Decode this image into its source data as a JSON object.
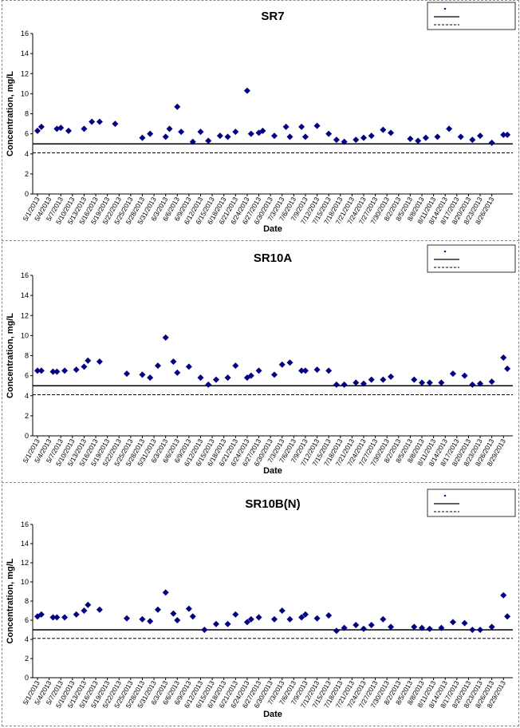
{
  "chart_data": [
    {
      "type": "scatter",
      "title": "SR7",
      "xlabel": "Date",
      "ylabel": "Concentration, mg/L",
      "ylim": [
        0,
        16
      ],
      "yticks": [
        "0",
        "2",
        "4",
        "6",
        "8",
        "10",
        "12",
        "14",
        "16"
      ],
      "grid": false,
      "legend_position": "top-right",
      "x_tick_labels": [
        "5/1/2013",
        "5/4/2013",
        "5/7/2013",
        "5/10/2013",
        "5/13/2013",
        "5/16/2013",
        "5/19/2013",
        "5/22/2013",
        "5/25/2013",
        "5/28/2013",
        "5/31/2013",
        "6/3/2013",
        "6/6/2013",
        "6/9/2013",
        "6/12/2013",
        "6/15/2013",
        "6/18/2013",
        "6/21/2013",
        "6/24/2013",
        "6/27/2013",
        "6/30/2013",
        "7/3/2013",
        "7/6/2013",
        "7/9/2013",
        "7/12/2013",
        "7/15/2013",
        "7/18/2013",
        "7/21/2013",
        "7/24/2013",
        "7/27/2013",
        "7/30/2013",
        "8/2/2013",
        "8/5/2013",
        "8/8/2013",
        "8/11/2013",
        "8/14/2013",
        "8/17/2013",
        "8/20/2013",
        "8/23/2013",
        "8/26/2013"
      ],
      "series": [
        {
          "marker": "diamond",
          "color": "#00008B",
          "x": [
            "5/1/2013",
            "5/2/2013",
            "5/6/2013",
            "5/7/2013",
            "5/9/2013",
            "5/13/2013",
            "5/15/2013",
            "5/17/2013",
            "5/21/2013",
            "5/28/2013",
            "5/30/2013",
            "6/3/2013",
            "6/4/2013",
            "6/6/2013",
            "6/7/2013",
            "6/10/2013",
            "6/12/2013",
            "6/14/2013",
            "6/17/2013",
            "6/19/2013",
            "6/21/2013",
            "6/24/2013",
            "6/25/2013",
            "6/27/2013",
            "6/28/2013",
            "7/1/2013",
            "7/4/2013",
            "7/5/2013",
            "7/8/2013",
            "7/9/2013",
            "7/12/2013",
            "7/15/2013",
            "7/17/2013",
            "7/19/2013",
            "7/22/2013",
            "7/24/2013",
            "7/26/2013",
            "7/29/2013",
            "7/31/2013",
            "8/5/2013",
            "8/7/2013",
            "8/9/2013",
            "8/12/2013",
            "8/15/2013",
            "8/18/2013",
            "8/21/2013",
            "8/23/2013",
            "8/26/2013",
            "8/29/2013",
            "8/30/2013"
          ],
          "y": [
            6.3,
            6.7,
            6.5,
            6.6,
            6.3,
            6.5,
            7.2,
            7.2,
            7.0,
            5.6,
            6.0,
            5.7,
            6.5,
            8.7,
            6.2,
            5.2,
            6.2,
            5.3,
            5.8,
            5.7,
            6.2,
            10.3,
            6.0,
            6.1,
            6.3,
            5.8,
            6.7,
            5.7,
            6.7,
            5.7,
            6.8,
            6.0,
            5.4,
            5.2,
            5.4,
            5.6,
            5.8,
            6.4,
            6.1,
            5.5,
            5.3,
            5.6,
            5.7,
            6.5,
            5.7,
            5.4,
            5.8,
            5.1,
            5.9,
            5.9
          ]
        },
        {
          "line": "solid",
          "y_const": 5.0
        },
        {
          "line": "dashed",
          "y_const": 4.1
        }
      ]
    },
    {
      "type": "scatter",
      "title": "SR10A",
      "xlabel": "Date",
      "ylabel": "Concentration, mg/L",
      "ylim": [
        0,
        16
      ],
      "yticks": [
        "0",
        "2",
        "4",
        "6",
        "8",
        "10",
        "12",
        "14",
        "16"
      ],
      "grid": false,
      "legend_position": "top-right",
      "x_tick_labels": [
        "5/1/2013",
        "5/4/2013",
        "5/7/2013",
        "5/10/2013",
        "5/13/2013",
        "5/16/2013",
        "5/19/2013",
        "5/22/2013",
        "5/25/2013",
        "5/28/2013",
        "5/31/2013",
        "6/3/2013",
        "6/6/2013",
        "6/9/2013",
        "6/12/2013",
        "6/15/2013",
        "6/18/2013",
        "6/21/2013",
        "6/24/2013",
        "6/27/2013",
        "6/30/2013",
        "7/3/2013",
        "7/6/2013",
        "7/9/2013",
        "7/12/2013",
        "7/15/2013",
        "7/18/2013",
        "7/21/2013",
        "7/24/2013",
        "7/27/2013",
        "7/30/2013",
        "8/2/2013",
        "8/5/2013",
        "8/8/2013",
        "8/11/2013",
        "8/14/2013",
        "8/17/2013",
        "8/20/2013",
        "8/23/2013",
        "8/26/2013",
        "8/29/2013"
      ],
      "series": [
        {
          "marker": "diamond",
          "color": "#00008B",
          "x": [
            "5/1/2013",
            "5/2/2013",
            "5/5/2013",
            "5/6/2013",
            "5/8/2013",
            "5/11/2013",
            "5/13/2013",
            "5/14/2013",
            "5/17/2013",
            "5/24/2013",
            "5/28/2013",
            "5/30/2013",
            "6/1/2013",
            "6/3/2013",
            "6/5/2013",
            "6/6/2013",
            "6/9/2013",
            "6/12/2013",
            "6/14/2013",
            "6/16/2013",
            "6/19/2013",
            "6/21/2013",
            "6/24/2013",
            "6/25/2013",
            "6/27/2013",
            "7/1/2013",
            "7/3/2013",
            "7/5/2013",
            "7/8/2013",
            "7/9/2013",
            "7/12/2013",
            "7/15/2013",
            "7/17/2013",
            "7/19/2013",
            "7/22/2013",
            "7/24/2013",
            "7/26/2013",
            "7/29/2013",
            "7/31/2013",
            "8/6/2013",
            "8/8/2013",
            "8/10/2013",
            "8/13/2013",
            "8/16/2013",
            "8/19/2013",
            "8/21/2013",
            "8/23/2013",
            "8/26/2013",
            "8/29/2013",
            "8/30/2013"
          ],
          "y": [
            6.5,
            6.5,
            6.4,
            6.4,
            6.5,
            6.6,
            6.9,
            7.5,
            7.4,
            6.2,
            6.1,
            5.8,
            7.0,
            9.8,
            7.4,
            6.3,
            6.9,
            5.8,
            5.1,
            5.6,
            5.8,
            7.0,
            5.8,
            6.0,
            6.5,
            6.1,
            7.1,
            7.3,
            6.5,
            6.5,
            6.6,
            6.5,
            5.1,
            5.1,
            5.3,
            5.2,
            5.6,
            5.6,
            5.9,
            5.6,
            5.3,
            5.3,
            5.3,
            6.2,
            6.0,
            5.1,
            5.2,
            5.4,
            7.8,
            6.7
          ]
        },
        {
          "line": "solid",
          "y_const": 5.0
        },
        {
          "line": "dashed",
          "y_const": 4.1
        }
      ]
    },
    {
      "type": "scatter",
      "title": "SR10B(N)",
      "xlabel": "Date",
      "ylabel": "Concentration, mg/L",
      "ylim": [
        0,
        16
      ],
      "yticks": [
        "0",
        "2",
        "4",
        "6",
        "8",
        "10",
        "12",
        "14",
        "16"
      ],
      "grid": false,
      "legend_position": "top-right",
      "x_tick_labels": [
        "5/1/2013",
        "5/4/2013",
        "5/7/2013",
        "5/10/2013",
        "5/13/2013",
        "5/16/2013",
        "5/19/2013",
        "5/22/2013",
        "5/25/2013",
        "5/28/2013",
        "5/31/2013",
        "6/3/2013",
        "6/6/2013",
        "6/9/2013",
        "6/12/2013",
        "6/15/2013",
        "6/18/2013",
        "6/21/2013",
        "6/24/2013",
        "6/27/2013",
        "6/30/2013",
        "7/3/2013",
        "7/6/2013",
        "7/9/2013",
        "7/12/2013",
        "7/15/2013",
        "7/18/2013",
        "7/21/2013",
        "7/24/2013",
        "7/27/2013",
        "7/30/2013",
        "8/2/2013",
        "8/5/2013",
        "8/8/2013",
        "8/11/2013",
        "8/14/2013",
        "8/17/2013",
        "8/20/2013",
        "8/23/2013",
        "8/26/2013",
        "8/29/2013"
      ],
      "series": [
        {
          "marker": "diamond",
          "color": "#00008B",
          "x": [
            "5/1/2013",
            "5/2/2013",
            "5/5/2013",
            "5/6/2013",
            "5/8/2013",
            "5/11/2013",
            "5/13/2013",
            "5/14/2013",
            "5/17/2013",
            "5/24/2013",
            "5/28/2013",
            "5/30/2013",
            "6/1/2013",
            "6/3/2013",
            "6/5/2013",
            "6/6/2013",
            "6/9/2013",
            "6/10/2013",
            "6/13/2013",
            "6/16/2013",
            "6/19/2013",
            "6/21/2013",
            "6/24/2013",
            "6/25/2013",
            "6/27/2013",
            "7/1/2013",
            "7/3/2013",
            "7/5/2013",
            "7/8/2013",
            "7/9/2013",
            "7/12/2013",
            "7/15/2013",
            "7/17/2013",
            "7/19/2013",
            "7/22/2013",
            "7/24/2013",
            "7/26/2013",
            "7/29/2013",
            "7/31/2013",
            "8/6/2013",
            "8/8/2013",
            "8/10/2013",
            "8/13/2013",
            "8/16/2013",
            "8/19/2013",
            "8/21/2013",
            "8/23/2013",
            "8/26/2013",
            "8/29/2013",
            "8/30/2013"
          ],
          "y": [
            6.4,
            6.6,
            6.3,
            6.3,
            6.3,
            6.6,
            7.0,
            7.6,
            7.1,
            6.2,
            6.1,
            5.9,
            7.1,
            8.9,
            6.7,
            6.0,
            7.2,
            6.4,
            5.0,
            5.6,
            5.6,
            6.6,
            5.8,
            6.1,
            6.3,
            6.1,
            7.0,
            6.1,
            6.3,
            6.6,
            6.2,
            6.5,
            4.9,
            5.2,
            5.5,
            5.1,
            5.5,
            6.1,
            5.3,
            5.3,
            5.2,
            5.1,
            5.2,
            5.8,
            5.7,
            5.0,
            5.0,
            5.3,
            8.6,
            6.4
          ]
        },
        {
          "line": "solid",
          "y_const": 5.0
        },
        {
          "line": "dashed",
          "y_const": 4.1
        }
      ]
    }
  ]
}
